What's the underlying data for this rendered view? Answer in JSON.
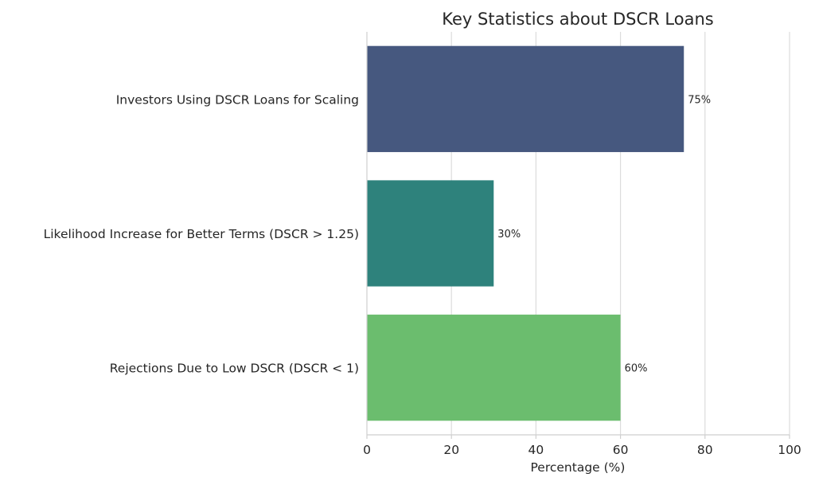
{
  "chart_data": {
    "type": "bar",
    "orientation": "horizontal",
    "title": "Key Statistics about DSCR Loans",
    "xlabel": "Percentage (%)",
    "ylabel": "",
    "xlim": [
      0,
      100
    ],
    "xticks": [
      0,
      20,
      40,
      60,
      80,
      100
    ],
    "grid": true,
    "categories": [
      "Investors Using DSCR Loans for Scaling",
      "Likelihood Increase for Better Terms (DSCR > 1.25)",
      "Rejections Due to Low DSCR (DSCR < 1)"
    ],
    "values": [
      75,
      30,
      60
    ],
    "value_labels": [
      "75%",
      "30%",
      "60%"
    ],
    "colors": [
      "#46587f",
      "#2e827c",
      "#6bbd6e"
    ]
  }
}
